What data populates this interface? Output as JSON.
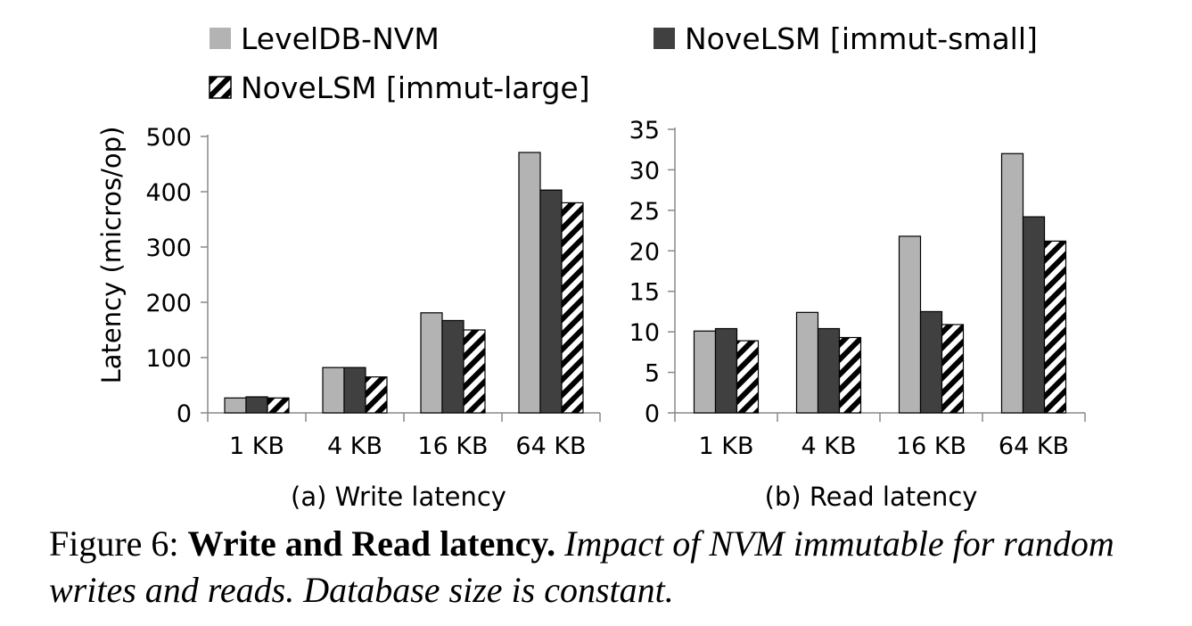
{
  "legend": [
    {
      "name": "LevelDB-NVM",
      "pattern": "light"
    },
    {
      "name": "NoveLSM [immut-small]",
      "pattern": "dark"
    },
    {
      "name": "NoveLSM [immut-large]",
      "pattern": "hatch"
    }
  ],
  "caption": {
    "label": "Figure 6:",
    "bold": "Write and Read latency.",
    "italic": "Impact of NVM immutable for random writes and reads. Database size is constant."
  },
  "colors": {
    "light": "#b3b3b3",
    "dark": "#404040",
    "hatch": "#000000"
  },
  "chart_data": [
    {
      "type": "bar",
      "subtitle": "(a) Write latency",
      "ylabel": "Latency  (micros/op)",
      "categories": [
        "1 KB",
        "4 KB",
        "16 KB",
        "64 KB"
      ],
      "ylim": [
        0,
        500
      ],
      "yticks": [
        0,
        100,
        200,
        300,
        400,
        500
      ],
      "series": [
        {
          "name": "LevelDB-NVM",
          "values": [
            27,
            82,
            181,
            471
          ]
        },
        {
          "name": "NoveLSM [immut-small]",
          "values": [
            29,
            82,
            167,
            403
          ]
        },
        {
          "name": "NoveLSM [immut-large]",
          "values": [
            27,
            65,
            150,
            380
          ]
        }
      ]
    },
    {
      "type": "bar",
      "subtitle": "(b) Read latency",
      "categories": [
        "1 KB",
        "4 KB",
        "16 KB",
        "64 KB"
      ],
      "ylim": [
        0,
        35
      ],
      "yticks": [
        0,
        5,
        10,
        15,
        20,
        25,
        30,
        35
      ],
      "series": [
        {
          "name": "LevelDB-NVM",
          "values": [
            10.1,
            12.4,
            21.8,
            32
          ]
        },
        {
          "name": "NoveLSM [immut-small]",
          "values": [
            10.4,
            10.4,
            12.5,
            24.2
          ]
        },
        {
          "name": "NoveLSM [immut-large]",
          "values": [
            8.9,
            9.3,
            10.9,
            21.2
          ]
        }
      ]
    }
  ]
}
